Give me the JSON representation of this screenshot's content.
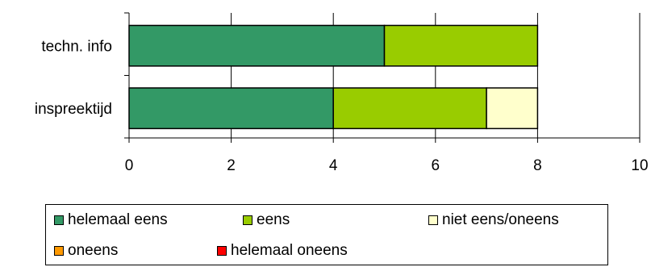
{
  "chart_data": {
    "type": "bar",
    "orientation": "horizontal",
    "stacked": true,
    "categories": [
      "techn. info",
      "inspreektijd"
    ],
    "series": [
      {
        "name": "helemaal eens",
        "color": "#339966",
        "values": [
          5,
          4
        ]
      },
      {
        "name": "eens",
        "color": "#99cc00",
        "values": [
          3,
          3
        ]
      },
      {
        "name": "niet eens/oneens",
        "color": "#ffffcc",
        "values": [
          0,
          1
        ]
      },
      {
        "name": "oneens",
        "color": "#ff9900",
        "values": [
          0,
          0
        ]
      },
      {
        "name": "helemaal oneens",
        "color": "#ff0000",
        "values": [
          0,
          0
        ]
      }
    ],
    "xlim": [
      0,
      10
    ],
    "xticks": [
      "0",
      "2",
      "4",
      "6",
      "8",
      "10"
    ],
    "grid": true,
    "legend_position": "bottom"
  }
}
